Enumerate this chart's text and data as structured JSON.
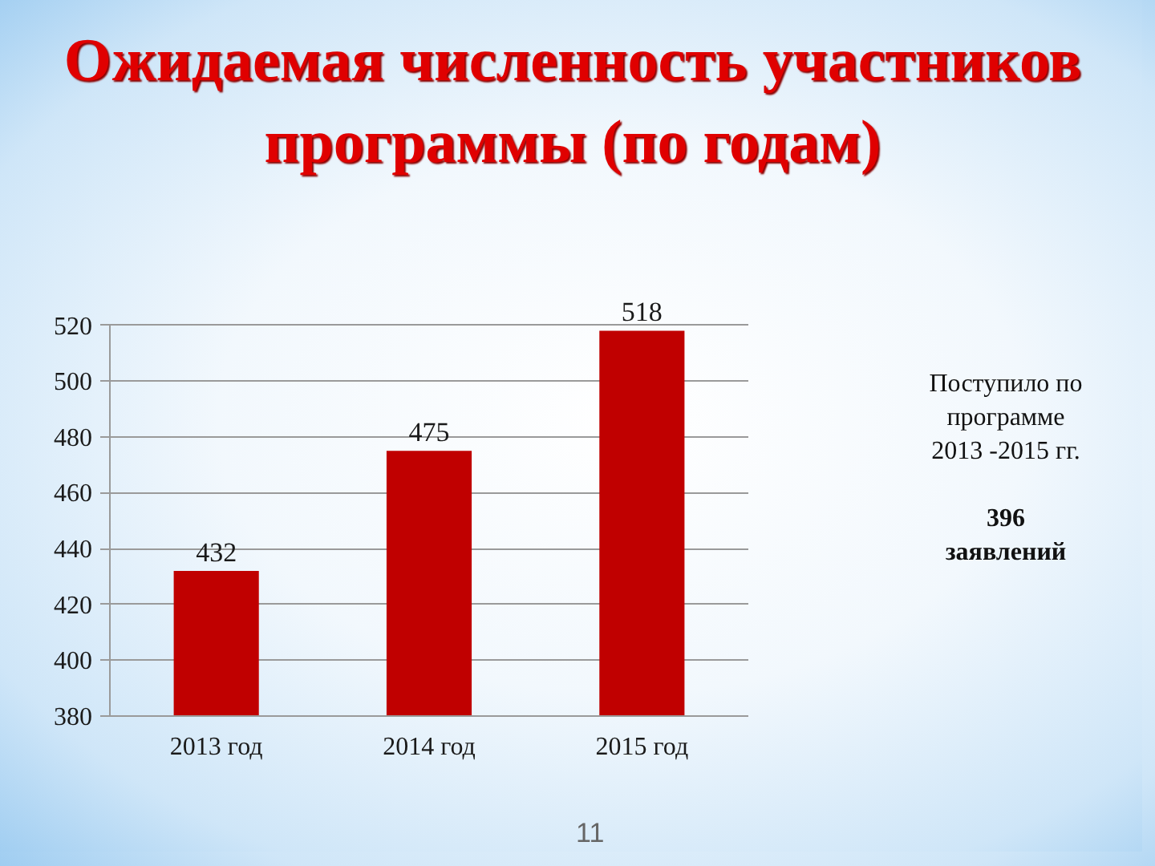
{
  "chart_data": {
    "type": "bar",
    "title": "Ожидаемая численность участников программы (по годам)",
    "categories": [
      "2013 год",
      "2014 год",
      "2015 год"
    ],
    "values": [
      432,
      475,
      518
    ],
    "color": "#c00000",
    "ylim": [
      380,
      520
    ],
    "yticks": [
      380,
      400,
      420,
      440,
      460,
      480,
      500,
      520
    ],
    "grid": "y",
    "data_labels": true,
    "annotations": [
      "Поступило по программе 2013 -2015 гг.",
      "396 заявлений",
      "11"
    ]
  }
}
